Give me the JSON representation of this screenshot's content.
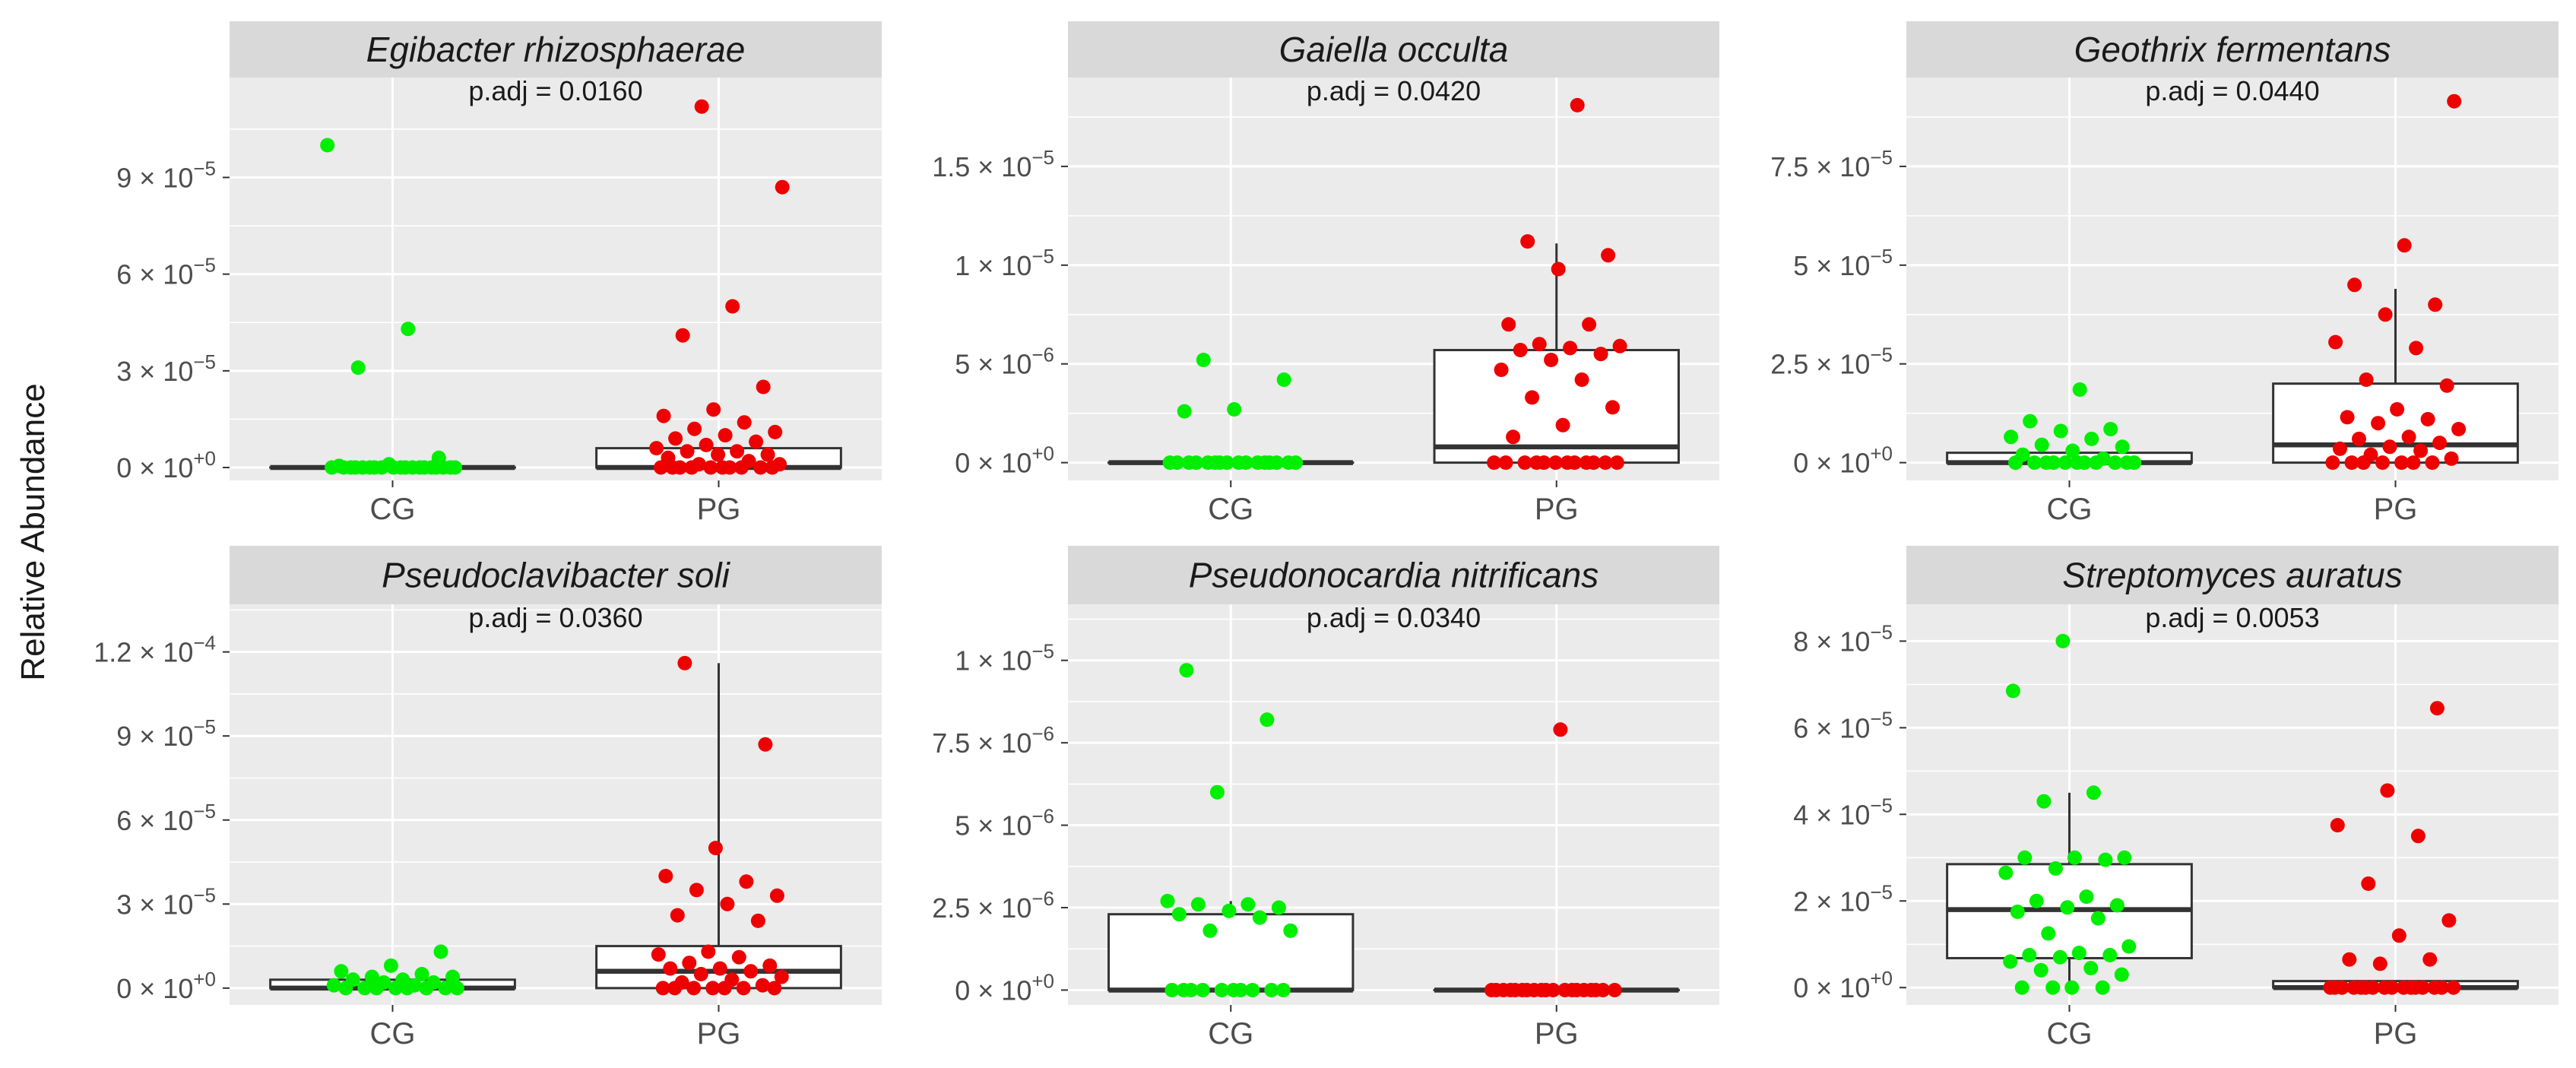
{
  "chart_data": {
    "type": "boxplot-faceted",
    "ylabel": "Relative Abundance",
    "colors": {
      "CG": "#00ee00",
      "PG": "#ee0000",
      "panel_bg": "#ebebeb",
      "strip_bg": "#d9d9d9"
    },
    "panels": [
      {
        "title": "Egibacter rhizosphaerae",
        "annotation": "p.adj = 0.0160",
        "categories": [
          "CG",
          "PG"
        ],
        "ylim": [
          -4e-06,
          0.000121
        ],
        "ticks": [
          0,
          3e-05,
          6e-05,
          9e-05
        ],
        "tick_labels": [
          {
            "base": "0 × 10",
            "exp": "+0"
          },
          {
            "base": "3 × 10",
            "exp": "−5"
          },
          {
            "base": "6 × 10",
            "exp": "−5"
          },
          {
            "base": "9 × 10",
            "exp": "−5"
          }
        ],
        "boxes": [
          {
            "group": "CG",
            "q1": 0,
            "median": 0,
            "q3": 0,
            "lower": 0,
            "upper": 0
          },
          {
            "group": "PG",
            "q1": 0,
            "median": 0,
            "q3": 6e-06,
            "lower": 0,
            "upper": 6e-06
          }
        ],
        "points": {
          "CG": [
            0.0001,
            4.3e-05,
            3.1e-05,
            3e-06,
            1e-06,
            5e-07,
            0,
            0,
            0,
            0,
            0,
            0,
            0,
            0,
            0,
            0,
            0,
            0,
            0,
            0,
            0,
            0,
            0,
            0,
            0
          ],
          "PG": [
            0.000112,
            8.7e-05,
            5e-05,
            4.1e-05,
            2.5e-05,
            1.8e-05,
            1.6e-05,
            1.4e-05,
            1.2e-05,
            1.1e-05,
            1e-05,
            9e-06,
            8e-06,
            7e-06,
            6e-06,
            5e-06,
            5e-06,
            4e-06,
            4e-06,
            3e-06,
            2e-06,
            1e-06,
            1e-06,
            0,
            0,
            0,
            0,
            0,
            0,
            0,
            0,
            0,
            0
          ]
        }
      },
      {
        "title": "Gaiella occulta",
        "annotation": "p.adj = 0.0420",
        "categories": [
          "CG",
          "PG"
        ],
        "ylim": [
          -9e-07,
          1.95e-05
        ],
        "ticks": [
          0,
          5e-06,
          1e-05,
          1.5e-05
        ],
        "tick_labels": [
          {
            "base": "0 × 10",
            "exp": "+0"
          },
          {
            "base": "5 × 10",
            "exp": "−6"
          },
          {
            "base": "1 × 10",
            "exp": "−5"
          },
          {
            "base": "1.5 × 10",
            "exp": "−5"
          }
        ],
        "boxes": [
          {
            "group": "CG",
            "q1": 0,
            "median": 0,
            "q3": 0,
            "lower": 0,
            "upper": 0
          },
          {
            "group": "PG",
            "q1": 0,
            "median": 8e-07,
            "q3": 5.7e-06,
            "lower": 0,
            "upper": 1.11e-05
          }
        ],
        "points": {
          "CG": [
            5.2e-06,
            4.2e-06,
            2.7e-06,
            2.6e-06,
            0,
            0,
            0,
            0,
            0,
            0,
            0,
            0,
            0,
            0,
            0,
            0,
            0,
            0,
            0,
            0
          ],
          "PG": [
            1.81e-05,
            1.12e-05,
            1.05e-05,
            9.8e-06,
            7e-06,
            7e-06,
            6e-06,
            5.9e-06,
            5.8e-06,
            5.7e-06,
            5.5e-06,
            5.2e-06,
            4.7e-06,
            4.2e-06,
            3.3e-06,
            2.8e-06,
            1.9e-06,
            1.3e-06,
            0,
            0,
            0,
            0,
            0,
            0,
            0,
            0,
            0,
            0,
            0,
            0
          ]
        }
      },
      {
        "title": "Geothrix fermentans",
        "annotation": "p.adj = 0.0440",
        "categories": [
          "CG",
          "PG"
        ],
        "ylim": [
          -4.5e-06,
          9.75e-05
        ],
        "ticks": [
          0,
          2.5e-05,
          5e-05,
          7.5e-05
        ],
        "tick_labels": [
          {
            "base": "0 × 10",
            "exp": "+0"
          },
          {
            "base": "2.5 × 10",
            "exp": "−5"
          },
          {
            "base": "5 × 10",
            "exp": "−5"
          },
          {
            "base": "7.5 × 10",
            "exp": "−5"
          }
        ],
        "boxes": [
          {
            "group": "CG",
            "q1": 0,
            "median": 0,
            "q3": 2.5e-06,
            "lower": 0,
            "upper": 2.5e-06
          },
          {
            "group": "PG",
            "q1": 0,
            "median": 4.5e-06,
            "q3": 2e-05,
            "lower": 0,
            "upper": 4.4e-05
          }
        ],
        "points": {
          "CG": [
            1.85e-05,
            1.05e-05,
            8.5e-06,
            8e-06,
            6.5e-06,
            6e-06,
            4.5e-06,
            4e-06,
            3e-06,
            2e-06,
            1e-06,
            0,
            0,
            0,
            0,
            0,
            0,
            0,
            0,
            0,
            0,
            0
          ],
          "PG": [
            9.15e-05,
            5.5e-05,
            4.5e-05,
            4e-05,
            3.75e-05,
            3.05e-05,
            2.9e-05,
            2.1e-05,
            1.95e-05,
            1.35e-05,
            1.15e-05,
            1.1e-05,
            1e-05,
            8.5e-06,
            6.5e-06,
            6e-06,
            5e-06,
            4e-06,
            3.5e-06,
            3e-06,
            2e-06,
            1e-06,
            0,
            0,
            0,
            0,
            0,
            0,
            0
          ]
        }
      },
      {
        "title": "Pseudoclavibacter soli",
        "annotation": "p.adj = 0.0360",
        "categories": [
          "CG",
          "PG"
        ],
        "ylim": [
          -6e-06,
          0.000137
        ],
        "ticks": [
          0,
          3e-05,
          6e-05,
          9e-05,
          0.00012
        ],
        "tick_labels": [
          {
            "base": "0 × 10",
            "exp": "+0"
          },
          {
            "base": "3 × 10",
            "exp": "−5"
          },
          {
            "base": "6 × 10",
            "exp": "−5"
          },
          {
            "base": "9 × 10",
            "exp": "−5"
          },
          {
            "base": "1.2 × 10",
            "exp": "−4"
          }
        ],
        "boxes": [
          {
            "group": "CG",
            "q1": 0,
            "median": 0,
            "q3": 3e-06,
            "lower": 0,
            "upper": 3e-06
          },
          {
            "group": "PG",
            "q1": 0,
            "median": 6e-06,
            "q3": 1.5e-05,
            "lower": 0,
            "upper": 0.000116
          }
        ],
        "points": {
          "CG": [
            1.3e-05,
            8e-06,
            6e-06,
            5e-06,
            4e-06,
            4e-06,
            3e-06,
            3e-06,
            2e-06,
            2e-06,
            1e-06,
            1e-06,
            0,
            0,
            0,
            0,
            0,
            0,
            0,
            0
          ],
          "PG": [
            0.000116,
            8.7e-05,
            5e-05,
            4e-05,
            3.8e-05,
            3.5e-05,
            3.3e-05,
            3e-05,
            2.6e-05,
            2.4e-05,
            1.3e-05,
            1.2e-05,
            1.1e-05,
            9e-06,
            8e-06,
            7e-06,
            7e-06,
            6e-06,
            5e-06,
            4e-06,
            3e-06,
            2e-06,
            1e-06,
            0,
            0,
            0,
            0,
            0,
            0,
            0
          ]
        }
      },
      {
        "title": "Pseudonocardia nitrificans",
        "annotation": "p.adj = 0.0340",
        "categories": [
          "CG",
          "PG"
        ],
        "ylim": [
          -4.5e-07,
          1.17e-05
        ],
        "ticks": [
          0,
          2.5e-06,
          5e-06,
          7.5e-06,
          1e-05
        ],
        "tick_labels": [
          {
            "base": "0 × 10",
            "exp": "+0"
          },
          {
            "base": "2.5 × 10",
            "exp": "−6"
          },
          {
            "base": "5 × 10",
            "exp": "−6"
          },
          {
            "base": "7.5 × 10",
            "exp": "−6"
          },
          {
            "base": "1 × 10",
            "exp": "−5"
          }
        ],
        "boxes": [
          {
            "group": "CG",
            "q1": 0,
            "median": 0,
            "q3": 2.3e-06,
            "lower": 0,
            "upper": 2.7e-06
          },
          {
            "group": "PG",
            "q1": 0,
            "median": 0,
            "q3": 0,
            "lower": 0,
            "upper": 0
          }
        ],
        "points": {
          "CG": [
            9.7e-06,
            8.2e-06,
            6e-06,
            2.7e-06,
            2.6e-06,
            2.6e-06,
            2.5e-06,
            2.4e-06,
            2.3e-06,
            2.2e-06,
            1.8e-06,
            1.8e-06,
            0,
            0,
            0,
            0,
            0,
            0,
            0,
            0,
            0,
            0
          ],
          "PG": [
            7.9e-06,
            0,
            0,
            0,
            0,
            0,
            0,
            0,
            0,
            0,
            0,
            0,
            0,
            0,
            0,
            0,
            0,
            0,
            0,
            0
          ]
        }
      },
      {
        "title": "Streptomyces auratus",
        "annotation": "p.adj = 0.0053",
        "categories": [
          "CG",
          "PG"
        ],
        "ylim": [
          -4e-06,
          8.85e-05
        ],
        "ticks": [
          0,
          2e-05,
          4e-05,
          6e-05,
          8e-05
        ],
        "tick_labels": [
          {
            "base": "0 × 10",
            "exp": "+0"
          },
          {
            "base": "2 × 10",
            "exp": "−5"
          },
          {
            "base": "4 × 10",
            "exp": "−5"
          },
          {
            "base": "6 × 10",
            "exp": "−5"
          },
          {
            "base": "8 × 10",
            "exp": "−5"
          }
        ],
        "boxes": [
          {
            "group": "CG",
            "q1": 6.8e-06,
            "median": 1.8e-05,
            "q3": 2.85e-05,
            "lower": 0,
            "upper": 4.5e-05
          },
          {
            "group": "PG",
            "q1": 0,
            "median": 0,
            "q3": 1.5e-06,
            "lower": 0,
            "upper": 1.5e-06
          }
        ],
        "points": {
          "CG": [
            8e-05,
            6.85e-05,
            4.5e-05,
            4.3e-05,
            3e-05,
            3e-05,
            3e-05,
            2.95e-05,
            2.75e-05,
            2.65e-05,
            2.1e-05,
            2e-05,
            1.9e-05,
            1.85e-05,
            1.75e-05,
            1.6e-05,
            1.25e-05,
            9.5e-06,
            8e-06,
            7.5e-06,
            7.5e-06,
            7e-06,
            6e-06,
            4.5e-06,
            4e-06,
            3e-06,
            0,
            0,
            0,
            0
          ],
          "PG": [
            6.45e-05,
            4.55e-05,
            3.75e-05,
            3.5e-05,
            2.4e-05,
            1.55e-05,
            1.2e-05,
            6.5e-06,
            6.5e-06,
            5.5e-06,
            0,
            0,
            0,
            0,
            0,
            0,
            0,
            0,
            0,
            0,
            0,
            0,
            0,
            0,
            0,
            0
          ]
        }
      }
    ]
  }
}
